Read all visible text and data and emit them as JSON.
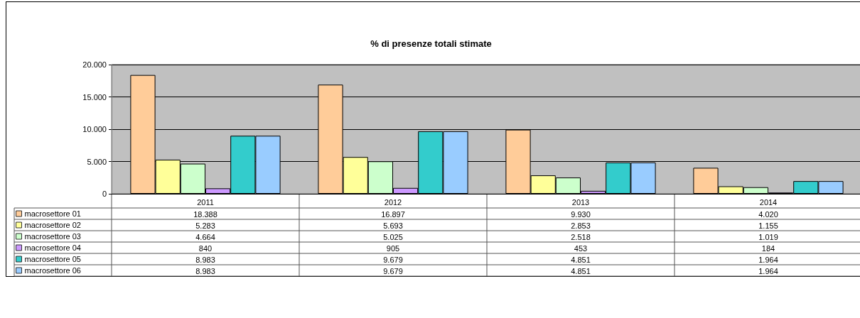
{
  "chart_data": {
    "type": "bar",
    "title": "% di presenze totali stimate",
    "categories": [
      "2011",
      "2012",
      "2013",
      "2014"
    ],
    "series": [
      {
        "name": "macrosettore 01",
        "color": "#ffcc99",
        "values": [
          18388,
          16897,
          9930,
          4020
        ],
        "value_labels": [
          "18.388",
          "16.897",
          "9.930",
          "4.020"
        ]
      },
      {
        "name": "macrosettore 02",
        "color": "#ffff99",
        "values": [
          5283,
          5693,
          2853,
          1155
        ],
        "value_labels": [
          "5.283",
          "5.693",
          "2.853",
          "1.155"
        ]
      },
      {
        "name": "macrosettore 03",
        "color": "#ccffcc",
        "values": [
          4664,
          5025,
          2518,
          1019
        ],
        "value_labels": [
          "4.664",
          "5.025",
          "2.518",
          "1.019"
        ]
      },
      {
        "name": "macrosettore 04",
        "color": "#cc99ff",
        "values": [
          840,
          905,
          453,
          184
        ],
        "value_labels": [
          "840",
          "905",
          "453",
          "184"
        ]
      },
      {
        "name": "macrosettore 05",
        "color": "#33cccc",
        "values": [
          8983,
          9679,
          4851,
          1964
        ],
        "value_labels": [
          "8.983",
          "9.679",
          "4.851",
          "1.964"
        ]
      },
      {
        "name": "macrosettore 06",
        "color": "#99ccff",
        "values": [
          8983,
          9679,
          4851,
          1964
        ],
        "value_labels": [
          "8.983",
          "9.679",
          "4.851",
          "1.964"
        ]
      }
    ],
    "ylim": [
      0,
      20000
    ],
    "yticks": [
      0,
      {
        "value": 5000,
        "label": "5.000"
      },
      {
        "value": 10000,
        "label": "10.000"
      },
      {
        "value": 15000,
        "label": "15.000"
      },
      {
        "value": 20000,
        "label": "20.000"
      }
    ],
    "grid": "y",
    "legend": "bottom left"
  }
}
